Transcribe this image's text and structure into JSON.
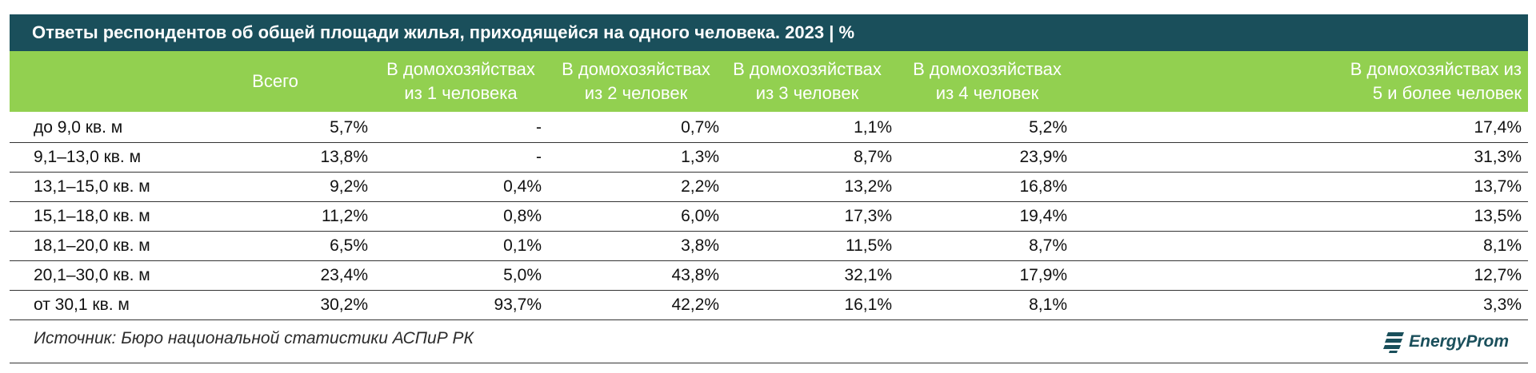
{
  "title": "Ответы респондентов об общей площади жилья, приходящейся на одного человека. 2023 | %",
  "source": "Источник: Бюро национальной статистики АСПиР РК",
  "logo": {
    "text": "EnergyProm",
    "icon": "energyprom-logo-icon"
  },
  "colors": {
    "title_bg": "#1a4f5b",
    "header_bg": "#92d050",
    "header_text": "#ffffff"
  },
  "chart_data": {
    "type": "table",
    "title": "Ответы респондентов об общей площади жилья, приходящейся на одного человека. 2023 | %",
    "columns": [
      {
        "lines": [
          "Всего"
        ]
      },
      {
        "lines": [
          "В домохозяйствах",
          "из 1 человека"
        ]
      },
      {
        "lines": [
          "В домохозяйствах",
          "из 2 человек"
        ]
      },
      {
        "lines": [
          "В домохозяйствах",
          "из 3 человек"
        ]
      },
      {
        "lines": [
          "В домохозяйствах",
          "из 4 человек"
        ]
      },
      {
        "lines": [
          "В домохозяйствах из",
          "5 и более человек"
        ]
      }
    ],
    "rows": [
      {
        "label": "до 9,0 кв. м",
        "values": [
          "5,7%",
          "-",
          "0,7%",
          "1,1%",
          "5,2%",
          "17,4%"
        ]
      },
      {
        "label": "9,1–13,0 кв. м",
        "values": [
          "13,8%",
          "-",
          "1,3%",
          "8,7%",
          "23,9%",
          "31,3%"
        ]
      },
      {
        "label": "13,1–15,0 кв. м",
        "values": [
          "9,2%",
          "0,4%",
          "2,2%",
          "13,2%",
          "16,8%",
          "13,7%"
        ]
      },
      {
        "label": "15,1–18,0 кв. м",
        "values": [
          "11,2%",
          "0,8%",
          "6,0%",
          "17,3%",
          "19,4%",
          "13,5%"
        ]
      },
      {
        "label": "18,1–20,0 кв. м",
        "values": [
          "6,5%",
          "0,1%",
          "3,8%",
          "11,5%",
          "8,7%",
          "8,1%"
        ]
      },
      {
        "label": "20,1–30,0 кв. м",
        "values": [
          "23,4%",
          "5,0%",
          "43,8%",
          "32,1%",
          "17,9%",
          "12,7%"
        ]
      },
      {
        "label": "от 30,1 кв. м",
        "values": [
          "30,2%",
          "93,7%",
          "42,2%",
          "16,1%",
          "8,1%",
          "3,3%"
        ]
      }
    ]
  }
}
